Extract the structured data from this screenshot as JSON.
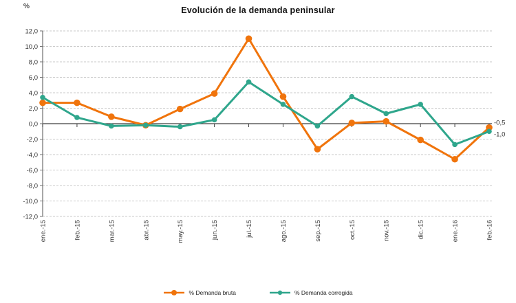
{
  "title": "Evolución de la demanda peninsular",
  "y_axis_unit": "%",
  "chart_data": {
    "type": "line",
    "title": "Evolución de la demanda peninsular",
    "ylabel": "%",
    "xlabel": "",
    "categories": [
      "ene.-15",
      "feb.-15",
      "mar.-15",
      "abr.-15",
      "may.-15",
      "jun.-15",
      "jul.-15",
      "ago.-15",
      "sep.-15",
      "oct.-15",
      "nov.-15",
      "dic.-15",
      "ene.-16",
      "feb.-16"
    ],
    "series": [
      {
        "name": "% Demanda bruta",
        "color": "#F0740C",
        "values": [
          2.7,
          2.7,
          0.9,
          -0.2,
          1.9,
          3.9,
          11.0,
          3.5,
          -3.3,
          0.1,
          0.3,
          -2.1,
          -4.6,
          -0.5
        ],
        "end_label": "-0,5"
      },
      {
        "name": "% Demanda corregida",
        "color": "#2FA68C",
        "values": [
          3.4,
          0.8,
          -0.3,
          -0.2,
          -0.4,
          0.5,
          5.4,
          2.5,
          -0.3,
          3.5,
          1.3,
          2.5,
          -2.7,
          -1.0
        ],
        "end_label": "-1,0"
      }
    ],
    "ylim": [
      -12,
      12
    ],
    "ytick_step": 2,
    "ytick_labels": [
      "12,0",
      "10,0",
      "8,0",
      "6,0",
      "4,0",
      "2,0",
      "0,0",
      "-2,0",
      "-4,0",
      "-6,0",
      "-8,0",
      "-10,0",
      "-12,0"
    ],
    "grid": true,
    "gridline_style": "dashed",
    "legend_position": "bottom",
    "colors": {
      "gridline": "#C9C9C9",
      "zero_line": "#3F3F3F",
      "axis": "#6E6E6E",
      "tick_text": "#333333"
    }
  }
}
